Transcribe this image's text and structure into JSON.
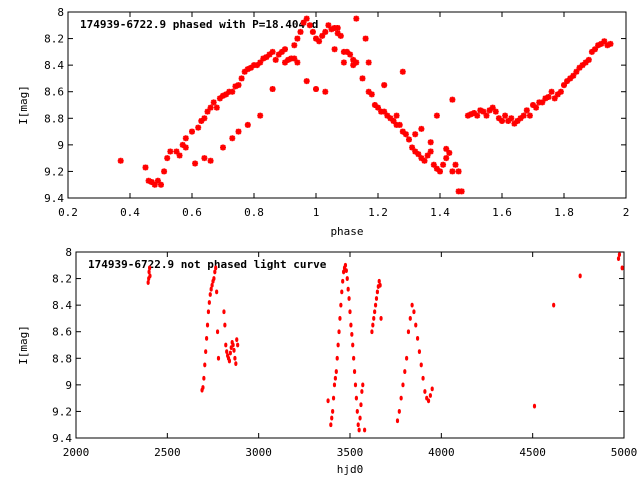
{
  "colors": {
    "points": "#ff0000",
    "axes": "#000000",
    "background": "#ffffff"
  },
  "chart_data": [
    {
      "type": "scatter",
      "title": "174939-6722.9 phased with P=18.404 d",
      "xlabel": "phase",
      "ylabel": "I[mag]",
      "xlim": [
        0.2,
        2.0
      ],
      "ylim": [
        9.4,
        8.0
      ],
      "y_inverted": true,
      "grid": false,
      "xticks": [
        "0.2",
        "0.4",
        "0.6",
        "0.8",
        "1",
        "1.2",
        "1.4",
        "1.6",
        "1.8",
        "2"
      ],
      "yticks": [
        "8",
        "8.2",
        "8.4",
        "8.6",
        "8.8",
        "9",
        "9.2",
        "9.4"
      ],
      "marker": "star",
      "series": [
        {
          "x": [
            0.37,
            0.45,
            0.46,
            0.47,
            0.48,
            0.49,
            0.5,
            0.51,
            0.52,
            0.53,
            0.55,
            0.57,
            0.58,
            0.6,
            0.62,
            0.63,
            0.64,
            0.65,
            0.66,
            0.67,
            0.68,
            0.69,
            0.7,
            0.71,
            0.72,
            0.73,
            0.74,
            0.75,
            0.76,
            0.77,
            0.78,
            0.79,
            0.8,
            0.81,
            0.82,
            0.83,
            0.84,
            0.85,
            0.86,
            0.87,
            0.88,
            0.89,
            0.9,
            0.91,
            0.92,
            0.93,
            0.94,
            0.95,
            0.96,
            0.97,
            0.98,
            0.99,
            1.0,
            1.01,
            1.02,
            1.03,
            1.04,
            1.05,
            1.06,
            1.07,
            1.08,
            1.09,
            1.1,
            1.11,
            1.12,
            1.13,
            1.15,
            1.17,
            1.18,
            1.19,
            1.2,
            1.21,
            1.22,
            1.23,
            1.24,
            1.25,
            1.26,
            1.27,
            1.28,
            1.29,
            1.3,
            1.31,
            1.32,
            1.33,
            1.34,
            1.35,
            1.36,
            1.37,
            1.38,
            1.39,
            1.4,
            1.41,
            1.42,
            1.43,
            1.44,
            1.45,
            1.46,
            1.47,
            1.49,
            1.5,
            1.51,
            1.52,
            1.53,
            1.54,
            1.55,
            1.56,
            1.57,
            1.58,
            1.59,
            1.6,
            1.61,
            1.62,
            1.63,
            1.64,
            1.65,
            1.66,
            1.67,
            1.68,
            1.69,
            1.7,
            1.71,
            1.72,
            1.73,
            1.74,
            1.75,
            1.76,
            1.77,
            1.78,
            1.79,
            1.8,
            1.81,
            1.82,
            1.83,
            1.84,
            1.85,
            1.86,
            1.87,
            1.88,
            1.89,
            1.9,
            1.91,
            1.92,
            1.93,
            1.94,
            1.95,
            0.56,
            0.58,
            0.61,
            0.64,
            0.66,
            0.7,
            0.73,
            0.75,
            0.78,
            0.82,
            0.86,
            0.9,
            0.94,
            0.97,
            1.0,
            1.03,
            1.06,
            1.09,
            1.12,
            1.16,
            1.26,
            1.32,
            1.37,
            1.42,
            1.46,
            0.93,
            1.07,
            1.13,
            1.17,
            1.22,
            1.28,
            1.34,
            1.39,
            1.44
          ],
          "y": [
            9.12,
            9.17,
            9.27,
            9.28,
            9.3,
            9.27,
            9.3,
            9.2,
            9.1,
            9.05,
            9.05,
            9.0,
            8.95,
            8.9,
            8.87,
            8.82,
            8.8,
            8.75,
            8.72,
            8.68,
            8.72,
            8.65,
            8.63,
            8.62,
            8.6,
            8.6,
            8.56,
            8.55,
            8.5,
            8.45,
            8.43,
            8.42,
            8.4,
            8.4,
            8.38,
            8.35,
            8.34,
            8.32,
            8.3,
            8.36,
            8.32,
            8.3,
            8.28,
            8.36,
            8.35,
            8.25,
            8.2,
            8.15,
            8.08,
            8.05,
            8.1,
            8.15,
            8.2,
            8.22,
            8.18,
            8.15,
            8.1,
            8.13,
            8.12,
            8.16,
            8.18,
            8.3,
            8.3,
            8.32,
            8.36,
            8.38,
            8.5,
            8.6,
            8.62,
            8.7,
            8.72,
            8.75,
            8.75,
            8.78,
            8.8,
            8.82,
            8.85,
            8.85,
            8.9,
            8.92,
            8.96,
            9.02,
            9.05,
            9.07,
            9.1,
            9.12,
            9.08,
            9.05,
            9.15,
            9.18,
            9.2,
            9.15,
            9.1,
            9.06,
            9.2,
            9.15,
            9.2,
            9.35,
            8.78,
            8.77,
            8.76,
            8.78,
            8.74,
            8.75,
            8.78,
            8.74,
            8.72,
            8.75,
            8.8,
            8.82,
            8.78,
            8.82,
            8.8,
            8.84,
            8.82,
            8.8,
            8.78,
            8.74,
            8.78,
            8.7,
            8.72,
            8.68,
            8.68,
            8.65,
            8.64,
            8.6,
            8.65,
            8.62,
            8.6,
            8.55,
            8.52,
            8.5,
            8.48,
            8.45,
            8.42,
            8.4,
            8.38,
            8.36,
            8.3,
            8.28,
            8.25,
            8.24,
            8.22,
            8.25,
            8.24,
            9.08,
            9.02,
            9.14,
            9.1,
            9.12,
            9.02,
            8.95,
            8.9,
            8.85,
            8.78,
            8.58,
            8.38,
            8.38,
            8.52,
            8.58,
            8.6,
            8.28,
            8.38,
            8.4,
            8.2,
            8.78,
            8.92,
            8.98,
            9.03,
            9.35,
            8.35,
            8.12,
            8.05,
            8.38,
            8.55,
            8.45,
            8.88,
            8.78,
            8.66
          ],
          "values_are_estimates": true
        }
      ]
    },
    {
      "type": "scatter",
      "title": "174939-6722.9 not phased light curve",
      "xlabel": "hjd0",
      "ylabel": "I[mag]",
      "xlim": [
        2000,
        5000
      ],
      "ylim": [
        9.4,
        8.0
      ],
      "y_inverted": true,
      "grid": false,
      "xticks": [
        "2000",
        "2500",
        "3000",
        "3500",
        "4000",
        "4500",
        "5000"
      ],
      "yticks": [
        "8",
        "8.2",
        "8.4",
        "8.6",
        "8.8",
        "9",
        "9.2",
        "9.4"
      ],
      "marker": "dot",
      "series": [
        {
          "x": [
            2395,
            2398,
            2400,
            2403,
            2405,
            2690,
            2695,
            2700,
            2705,
            2710,
            2715,
            2720,
            2725,
            2730,
            2735,
            2740,
            2745,
            2750,
            2755,
            2760,
            2765,
            2770,
            2775,
            2780,
            2810,
            2815,
            2820,
            2825,
            2830,
            2835,
            2840,
            2845,
            2850,
            2855,
            2860,
            2865,
            2870,
            2875,
            2880,
            2885,
            3380,
            3395,
            3400,
            3405,
            3410,
            3415,
            3420,
            3425,
            3430,
            3435,
            3440,
            3445,
            3450,
            3455,
            3460,
            3465,
            3470,
            3475,
            3480,
            3485,
            3490,
            3495,
            3500,
            3505,
            3510,
            3515,
            3520,
            3525,
            3530,
            3535,
            3540,
            3545,
            3550,
            3555,
            3560,
            3565,
            3570,
            3580,
            3620,
            3625,
            3630,
            3635,
            3640,
            3645,
            3650,
            3655,
            3660,
            3665,
            3670,
            3760,
            3770,
            3780,
            3790,
            3800,
            3810,
            3820,
            3830,
            3840,
            3850,
            3860,
            3870,
            3880,
            3890,
            3900,
            3910,
            3920,
            3930,
            3940,
            3950,
            4510,
            4615,
            4760,
            4970,
            4975,
            4990
          ],
          "y": [
            8.23,
            8.2,
            8.15,
            8.12,
            8.18,
            9.04,
            9.02,
            8.95,
            8.85,
            8.75,
            8.65,
            8.55,
            8.45,
            8.38,
            8.32,
            8.28,
            8.25,
            8.22,
            8.2,
            8.15,
            8.12,
            8.3,
            8.6,
            8.8,
            8.45,
            8.55,
            8.7,
            8.75,
            8.78,
            8.8,
            8.82,
            8.76,
            8.72,
            8.68,
            8.7,
            8.74,
            8.8,
            8.84,
            8.66,
            8.7,
            9.12,
            9.3,
            9.25,
            9.2,
            9.1,
            9.0,
            8.95,
            8.9,
            8.8,
            8.7,
            8.6,
            8.5,
            8.4,
            8.3,
            8.22,
            8.15,
            8.12,
            8.1,
            8.14,
            8.2,
            8.28,
            8.35,
            8.45,
            8.55,
            8.62,
            8.7,
            8.8,
            8.9,
            9.0,
            9.1,
            9.2,
            9.3,
            9.34,
            9.25,
            9.15,
            9.05,
            9.0,
            9.34,
            8.6,
            8.55,
            8.5,
            8.45,
            8.4,
            8.35,
            8.3,
            8.26,
            8.22,
            8.25,
            8.5,
            9.27,
            9.2,
            9.1,
            9.0,
            8.9,
            8.8,
            8.6,
            8.5,
            8.4,
            8.45,
            8.55,
            8.65,
            8.75,
            8.85,
            8.95,
            9.05,
            9.1,
            9.12,
            9.08,
            9.03,
            9.16,
            8.4,
            8.18,
            8.05,
            8.02,
            8.12
          ],
          "values_are_estimates": true
        }
      ]
    }
  ]
}
